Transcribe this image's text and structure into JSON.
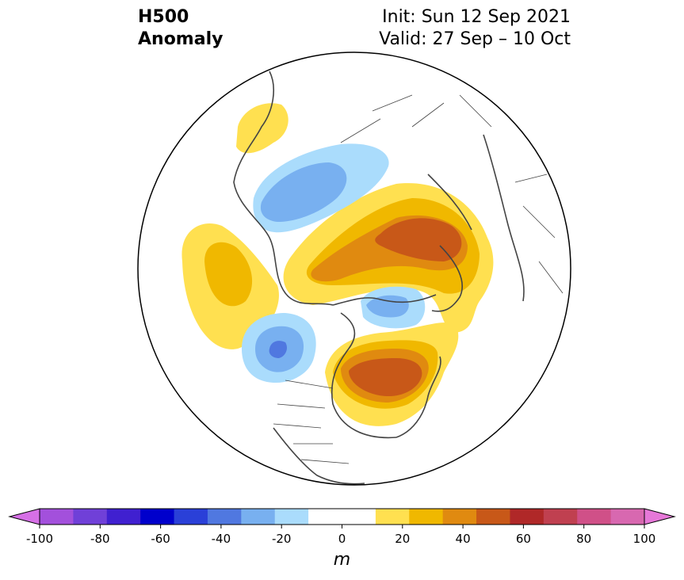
{
  "header": {
    "title_line1": "H500",
    "title_line2": "Anomaly",
    "init": "Init: Sun 12 Sep 2021",
    "valid": "Valid: 27 Sep – 10 Oct"
  },
  "colorbar": {
    "ticks": [
      "-100",
      "-80",
      "-60",
      "-40",
      "-20",
      "0",
      "20",
      "40",
      "60",
      "80",
      "100"
    ],
    "units": "m",
    "colors": [
      "#d670e6",
      "#a350dc",
      "#7040d8",
      "#4020d0",
      "#0000cc",
      "#2a40d8",
      "#5078e0",
      "#78b0f0",
      "#aadcfc",
      "#ffffff",
      "#ffffff",
      "#ffe050",
      "#f0b800",
      "#e08a10",
      "#c85818",
      "#b02828",
      "#c04050",
      "#d05088",
      "#d868b0",
      "#e678d8"
    ]
  },
  "colors": {
    "blue_light": "#aadcfc",
    "blue_mid": "#78b0f0",
    "blue_dark": "#5078e0",
    "yellow": "#ffe050",
    "gold": "#f0b800",
    "orange": "#e08a10",
    "rust": "#c85818",
    "coast": "#444444"
  }
}
